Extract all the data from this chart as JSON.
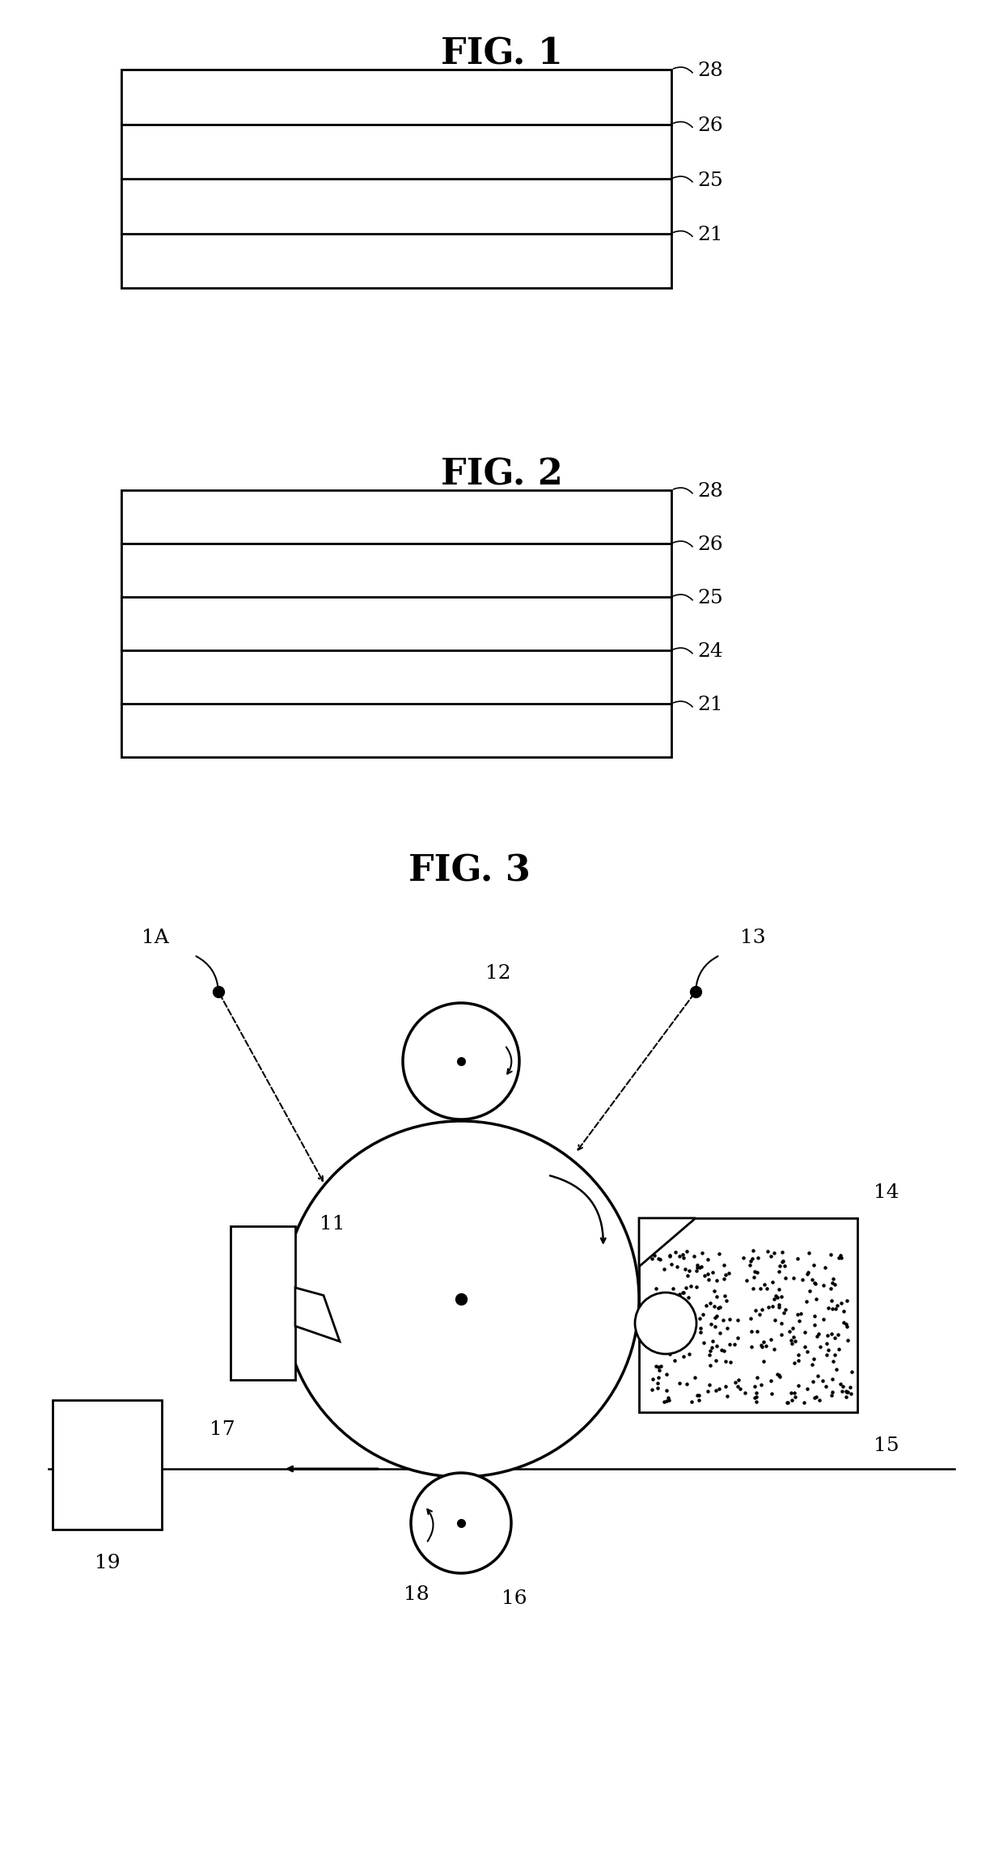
{
  "fig1_title": "FIG. 1",
  "fig2_title": "FIG. 2",
  "fig3_title": "FIG. 3",
  "background": "#ffffff",
  "fig1_layer_labels": [
    "28",
    "26",
    "25",
    "21"
  ],
  "fig2_layer_labels": [
    "28",
    "26",
    "25",
    "24",
    "21"
  ],
  "label_fontsize": 18,
  "title_fontsize": 32
}
